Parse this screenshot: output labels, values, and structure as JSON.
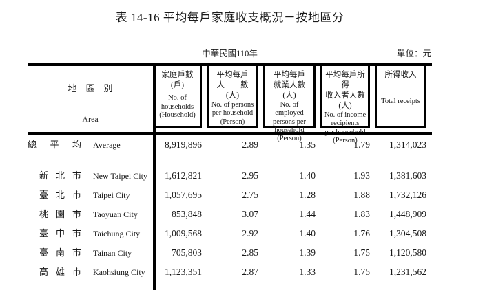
{
  "title": "表 14-16 平均每戶家庭收支概況－按地區分",
  "meta": {
    "period": "中華民國110年",
    "unit": "單位：元"
  },
  "table": {
    "area_header": {
      "zh": "地　區　別",
      "en": "Area"
    },
    "columns": [
      {
        "zh": "家庭戶數\n(戶)",
        "en": "No. of\nhouseholds\n(Household)"
      },
      {
        "zh": "平均每戶\n人　　數\n(人)",
        "en": "No. of persons\nper household\n(Person)"
      },
      {
        "zh": "平均每戶\n就業人數\n(人)",
        "en": "No. of employed\npersons per\nhousehold\n(Person)"
      },
      {
        "zh": "平均每戶所得\n收入者人數\n(人)",
        "en": "No. of income\nrecipients\nper household\n(Person)"
      },
      {
        "zh": "所得收入",
        "en": "Total receipts"
      }
    ],
    "rows": [
      {
        "zh": "總平均",
        "en": "Average",
        "indent": false,
        "values": [
          "8,919,896",
          "2.89",
          "1.35",
          "1.79",
          "1,314,023"
        ]
      },
      {
        "zh": "新北市",
        "en": "New Taipei City",
        "indent": true,
        "values": [
          "1,612,821",
          "2.95",
          "1.40",
          "1.93",
          "1,381,603"
        ]
      },
      {
        "zh": "臺北市",
        "en": "Taipei City",
        "indent": true,
        "values": [
          "1,057,695",
          "2.75",
          "1.28",
          "1.88",
          "1,732,126"
        ]
      },
      {
        "zh": "桃園市",
        "en": "Taoyuan City",
        "indent": true,
        "values": [
          "853,848",
          "3.07",
          "1.44",
          "1.83",
          "1,448,909"
        ]
      },
      {
        "zh": "臺中市",
        "en": "Taichung City",
        "indent": true,
        "values": [
          "1,009,568",
          "2.92",
          "1.40",
          "1.76",
          "1,304,508"
        ]
      },
      {
        "zh": "臺南市",
        "en": "Tainan City",
        "indent": true,
        "values": [
          "705,803",
          "2.85",
          "1.39",
          "1.75",
          "1,120,580"
        ]
      },
      {
        "zh": "高雄市",
        "en": "Kaohsiung City",
        "indent": true,
        "values": [
          "1,123,351",
          "2.87",
          "1.33",
          "1.75",
          "1,231,562"
        ]
      }
    ]
  }
}
